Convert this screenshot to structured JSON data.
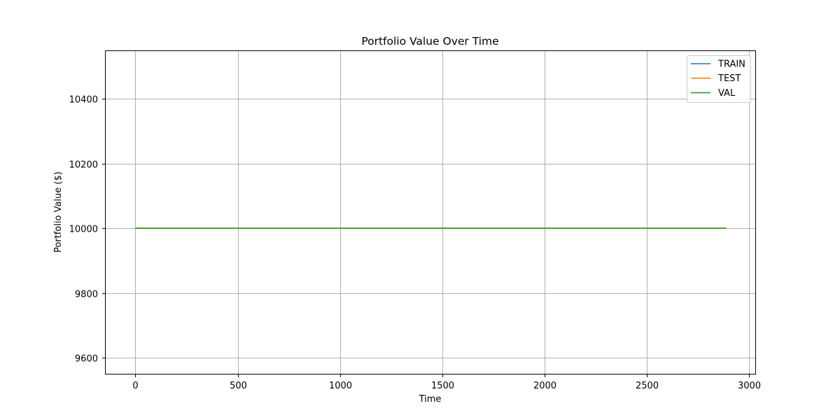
{
  "chart_data": {
    "type": "line",
    "title": "Portfolio Value Over Time",
    "xlabel": "Time",
    "ylabel": "Portfolio Value ($)",
    "xlim": [
      -145,
      3030
    ],
    "ylim": [
      9550,
      10550
    ],
    "x_ticks": [
      0,
      500,
      1000,
      1500,
      2000,
      2500,
      3000
    ],
    "x_tick_labels": [
      "0",
      "500",
      "1000",
      "1500",
      "2000",
      "2500",
      "3000"
    ],
    "y_ticks": [
      9600,
      9800,
      10000,
      10200,
      10400
    ],
    "y_tick_labels": [
      "9600",
      "9800",
      "10000",
      "10200",
      "10400"
    ],
    "grid": true,
    "legend_position": "top-right",
    "series": [
      {
        "name": "TRAIN",
        "color": "#1f77b4",
        "x": [
          0,
          2887
        ],
        "values": [
          10000,
          10000
        ]
      },
      {
        "name": "TEST",
        "color": "#ff7f0e",
        "x": [
          0,
          2887
        ],
        "values": [
          10000,
          10000
        ]
      },
      {
        "name": "VAL",
        "color": "#2ca02c",
        "x": [
          0,
          2887
        ],
        "values": [
          10000,
          10000
        ]
      }
    ]
  }
}
